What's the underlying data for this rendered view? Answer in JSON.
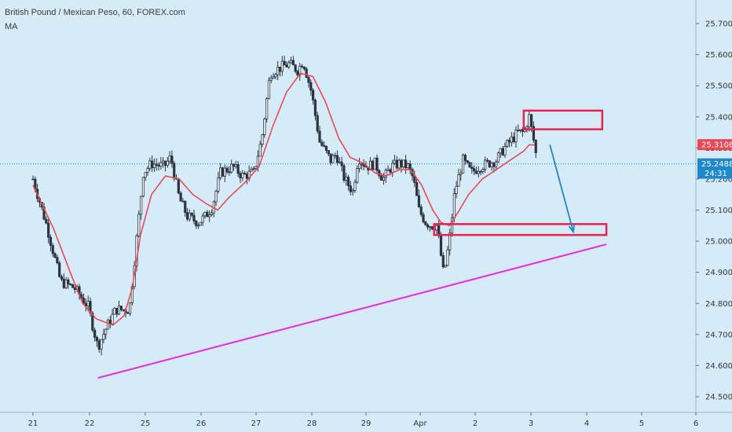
{
  "header": {
    "title": "British Pound / Mexican Peso, 60, FOREX.com",
    "indicator": "MA"
  },
  "chart_data": {
    "type": "candlestick",
    "y_range": [
      24.47,
      25.78
    ],
    "y_ticks": [
      "25.7000",
      "25.6000",
      "25.5000",
      "25.4000",
      "25.3000",
      "25.2000",
      "25.1000",
      "25.0000",
      "24.9000",
      "24.8000",
      "24.7000",
      "24.6000",
      "24.5000"
    ],
    "x_ticks": [
      "21",
      "22",
      "25",
      "26",
      "27",
      "28",
      "29",
      "Apr",
      "2",
      "3",
      "4",
      "5",
      "6"
    ],
    "price_path": [
      [
        0,
        25.2
      ],
      [
        1.0,
        25.05
      ],
      [
        2.0,
        24.87
      ],
      [
        3.0,
        24.85
      ],
      [
        4.0,
        24.79
      ],
      [
        4.7,
        24.66
      ],
      [
        5.3,
        24.72
      ],
      [
        6.0,
        24.78
      ],
      [
        7.0,
        24.78
      ],
      [
        7.5,
        25.0
      ],
      [
        8.0,
        25.22
      ],
      [
        8.6,
        25.25
      ],
      [
        9.5,
        25.24
      ],
      [
        10.0,
        25.27
      ],
      [
        10.6,
        25.14
      ],
      [
        11.2,
        25.08
      ],
      [
        12.0,
        25.06
      ],
      [
        12.5,
        25.08
      ],
      [
        13.0,
        25.11
      ],
      [
        13.6,
        25.22
      ],
      [
        14.5,
        25.24
      ],
      [
        15.2,
        25.21
      ],
      [
        16.0,
        25.22
      ],
      [
        16.6,
        25.33
      ],
      [
        17.2,
        25.54
      ],
      [
        18.0,
        25.56
      ],
      [
        18.6,
        25.57
      ],
      [
        19.2,
        25.55
      ],
      [
        19.6,
        25.58
      ],
      [
        20.2,
        25.48
      ],
      [
        20.8,
        25.32
      ],
      [
        21.6,
        25.26
      ],
      [
        22.0,
        25.28
      ],
      [
        22.6,
        25.2
      ],
      [
        23.2,
        25.16
      ],
      [
        23.6,
        25.27
      ],
      [
        24.2,
        25.24
      ],
      [
        24.8,
        25.25
      ],
      [
        25.4,
        25.2
      ],
      [
        26.0,
        25.24
      ],
      [
        26.6,
        25.25
      ],
      [
        27.2,
        25.24
      ],
      [
        27.6,
        25.2
      ],
      [
        28.0,
        25.1
      ],
      [
        28.5,
        25.06
      ],
      [
        28.9,
        25.05
      ],
      [
        29.3,
        25.05
      ],
      [
        29.8,
        24.89
      ],
      [
        30.2,
        25.0
      ],
      [
        30.6,
        25.16
      ],
      [
        31.2,
        25.26
      ],
      [
        31.8,
        25.22
      ],
      [
        32.4,
        25.24
      ],
      [
        33.0,
        25.25
      ],
      [
        33.6,
        25.26
      ],
      [
        34.2,
        25.3
      ],
      [
        34.8,
        25.33
      ],
      [
        35.2,
        25.35
      ],
      [
        35.6,
        25.35
      ],
      [
        36.0,
        25.4
      ],
      [
        36.3,
        25.33
      ],
      [
        36.6,
        25.25
      ]
    ],
    "ma_path": [
      [
        0,
        25.18
      ],
      [
        1.5,
        25.04
      ],
      [
        2.7,
        24.9
      ],
      [
        3.6,
        24.8
      ],
      [
        4.6,
        24.75
      ],
      [
        5.8,
        24.73
      ],
      [
        6.6,
        24.76
      ],
      [
        7.2,
        24.85
      ],
      [
        7.8,
        25.02
      ],
      [
        8.6,
        25.15
      ],
      [
        9.6,
        25.21
      ],
      [
        10.6,
        25.2
      ],
      [
        11.6,
        25.15
      ],
      [
        12.6,
        25.12
      ],
      [
        13.4,
        25.1
      ],
      [
        14.2,
        25.14
      ],
      [
        15.4,
        25.19
      ],
      [
        16.4,
        25.24
      ],
      [
        17.4,
        25.37
      ],
      [
        18.4,
        25.48
      ],
      [
        19.4,
        25.54
      ],
      [
        20.3,
        25.53
      ],
      [
        21.2,
        25.45
      ],
      [
        22.2,
        25.33
      ],
      [
        23.0,
        25.27
      ],
      [
        24.0,
        25.25
      ],
      [
        24.8,
        25.22
      ],
      [
        25.6,
        25.21
      ],
      [
        26.6,
        25.23
      ],
      [
        27.4,
        25.23
      ],
      [
        28.2,
        25.18
      ],
      [
        29.0,
        25.1
      ],
      [
        29.6,
        25.06
      ],
      [
        30.2,
        25.05
      ],
      [
        30.8,
        25.09
      ],
      [
        31.6,
        25.15
      ],
      [
        32.6,
        25.2
      ],
      [
        33.6,
        25.23
      ],
      [
        34.6,
        25.26
      ],
      [
        35.6,
        25.29
      ],
      [
        36.0,
        25.31
      ],
      [
        36.4,
        25.31
      ]
    ],
    "ma_color": "#e84a55",
    "price_line": {
      "value": 25.2488,
      "label": "25.2488",
      "countdown": "24:31",
      "color": "#1e88c8"
    },
    "ma_badge": {
      "value": 25.3106,
      "label": "25.3106",
      "color": "#e84a55"
    },
    "annotations": {
      "trendline": {
        "from": [
          4.7,
          24.56
        ],
        "to": [
          41.6,
          24.99
        ],
        "color": "#e62de0"
      },
      "resistance_box": {
        "x": [
          35.6,
          41.3
        ],
        "y": [
          25.36,
          25.42
        ],
        "color": "#e8244d"
      },
      "support_box": {
        "x": [
          29.1,
          41.6
        ],
        "y": [
          25.02,
          25.055
        ],
        "color": "#e8244d"
      },
      "arrow": {
        "from": [
          37.5,
          25.31
        ],
        "to": [
          39.2,
          25.03
        ],
        "color": "#2584c6"
      }
    }
  }
}
